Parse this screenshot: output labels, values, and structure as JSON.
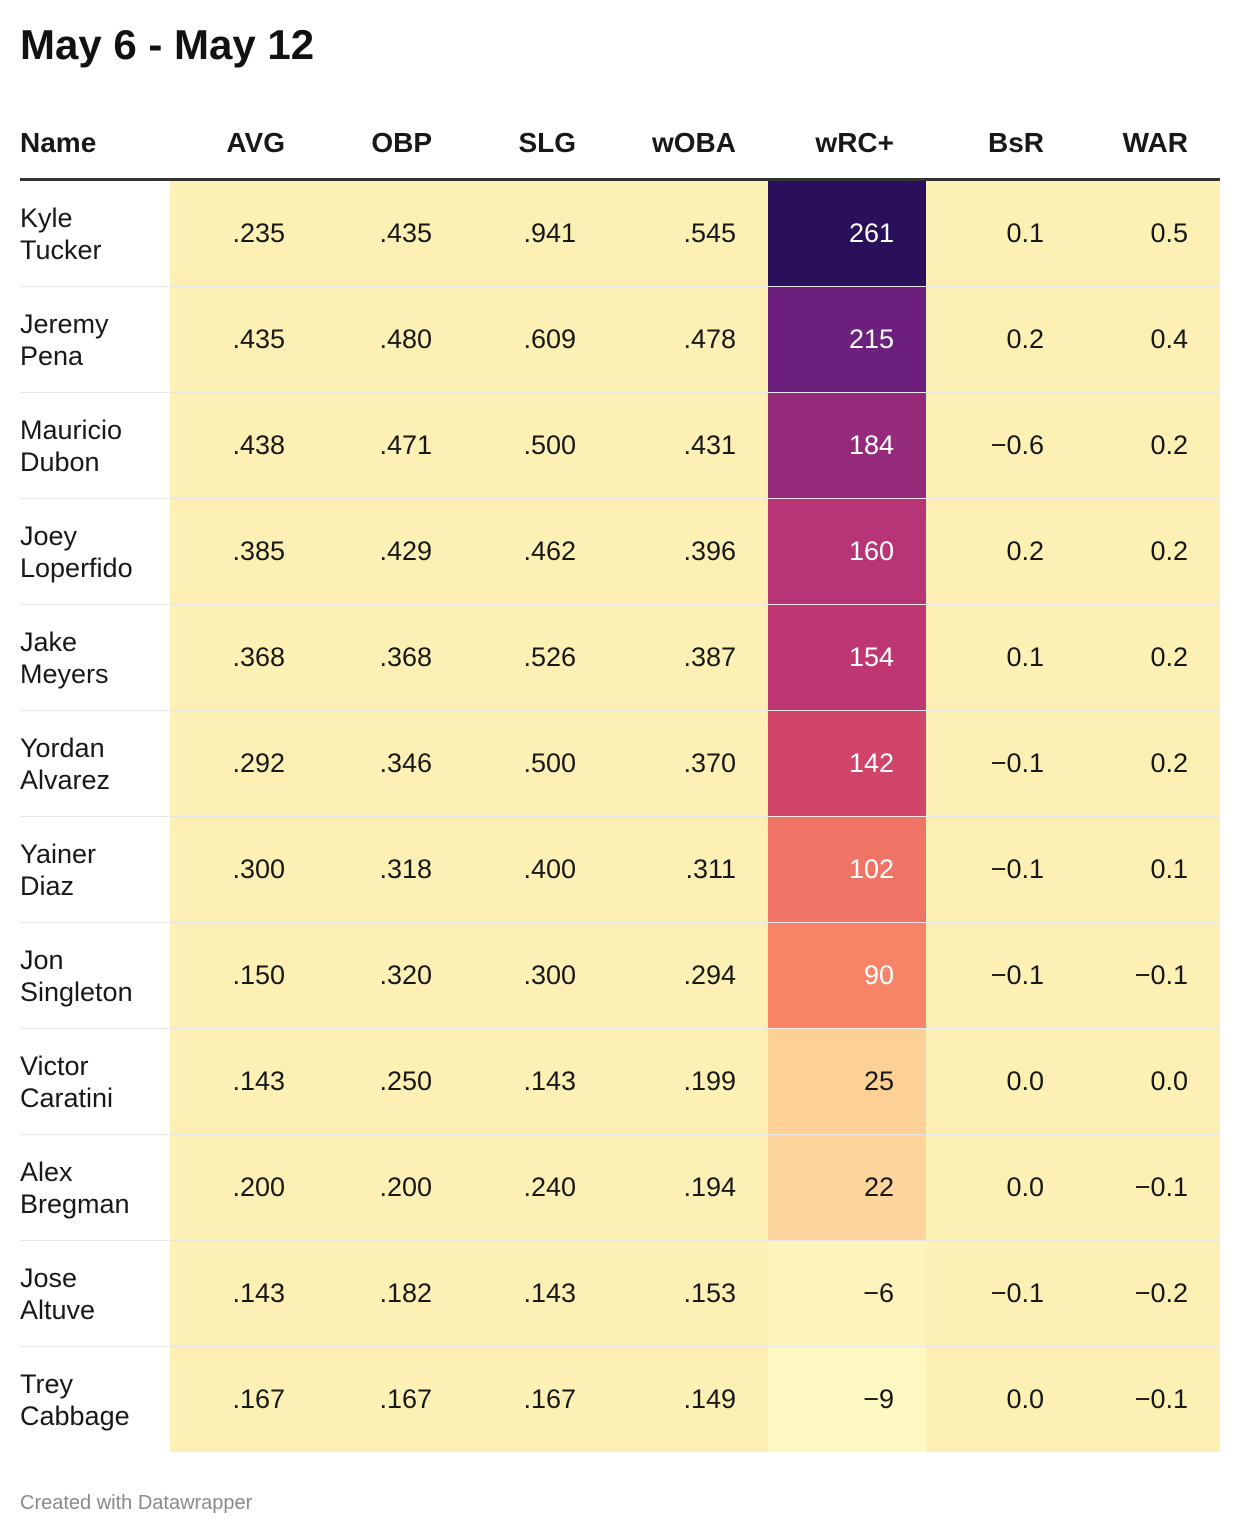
{
  "title": "May 6 - May 12",
  "footer": "Created with Datawrapper",
  "chart_data": {
    "type": "table",
    "title": "May 6 - May 12",
    "columns": [
      "Name",
      "AVG",
      "OBP",
      "SLG",
      "wOBA",
      "wRC+",
      "BsR",
      "WAR"
    ],
    "rows": [
      {
        "first": "Kyle",
        "last": "Tucker",
        "AVG": ".235",
        "OBP": ".435",
        "SLG": ".941",
        "wOBA": ".545",
        "wRC": "261",
        "BsR": "0.1",
        "WAR": "0.5"
      },
      {
        "first": "Jeremy",
        "last": "Pena",
        "AVG": ".435",
        "OBP": ".480",
        "SLG": ".609",
        "wOBA": ".478",
        "wRC": "215",
        "BsR": "0.2",
        "WAR": "0.4"
      },
      {
        "first": "Mauricio",
        "last": "Dubon",
        "AVG": ".438",
        "OBP": ".471",
        "SLG": ".500",
        "wOBA": ".431",
        "wRC": "184",
        "BsR": "−0.6",
        "WAR": "0.2"
      },
      {
        "first": "Joey",
        "last": "Loperfido",
        "AVG": ".385",
        "OBP": ".429",
        "SLG": ".462",
        "wOBA": ".396",
        "wRC": "160",
        "BsR": "0.2",
        "WAR": "0.2"
      },
      {
        "first": "Jake",
        "last": "Meyers",
        "AVG": ".368",
        "OBP": ".368",
        "SLG": ".526",
        "wOBA": ".387",
        "wRC": "154",
        "BsR": "0.1",
        "WAR": "0.2"
      },
      {
        "first": "Yordan",
        "last": "Alvarez",
        "AVG": ".292",
        "OBP": ".346",
        "SLG": ".500",
        "wOBA": ".370",
        "wRC": "142",
        "BsR": "−0.1",
        "WAR": "0.2"
      },
      {
        "first": "Yainer",
        "last": "Diaz",
        "AVG": ".300",
        "OBP": ".318",
        "SLG": ".400",
        "wOBA": ".311",
        "wRC": "102",
        "BsR": "−0.1",
        "WAR": "0.1"
      },
      {
        "first": "Jon",
        "last": "Singleton",
        "AVG": ".150",
        "OBP": ".320",
        "SLG": ".300",
        "wOBA": ".294",
        "wRC": "90",
        "BsR": "−0.1",
        "WAR": "−0.1"
      },
      {
        "first": "Victor",
        "last": "Caratini",
        "AVG": ".143",
        "OBP": ".250",
        "SLG": ".143",
        "wOBA": ".199",
        "wRC": "25",
        "BsR": "0.0",
        "WAR": "0.0"
      },
      {
        "first": "Alex",
        "last": "Bregman",
        "AVG": ".200",
        "OBP": ".200",
        "SLG": ".240",
        "wOBA": ".194",
        "wRC": "22",
        "BsR": "0.0",
        "WAR": "−0.1"
      },
      {
        "first": "Jose",
        "last": "Altuve",
        "AVG": ".143",
        "OBP": ".182",
        "SLG": ".143",
        "wOBA": ".153",
        "wRC": "−6",
        "BsR": "−0.1",
        "WAR": "−0.2"
      },
      {
        "first": "Trey",
        "last": "Cabbage",
        "AVG": ".167",
        "OBP": ".167",
        "SLG": ".167",
        "wOBA": ".149",
        "wRC": "−9",
        "BsR": "0.0",
        "WAR": "−0.1"
      }
    ],
    "heatmap_column": "wRC+",
    "heatmap_colors": {
      "261": "#2a0f5a",
      "215": "#6c1f7c",
      "184": "#962a7a",
      "160": "#b73576",
      "154": "#bf3772",
      "142": "#cf4468",
      "102": "#f07466",
      "90": "#f78466",
      "25": "#fdd196",
      "22": "#fdd49b",
      "−6": "#fdf4bd",
      "−9": "#fdf8c2"
    },
    "cell_background": "#fcf0b4"
  }
}
